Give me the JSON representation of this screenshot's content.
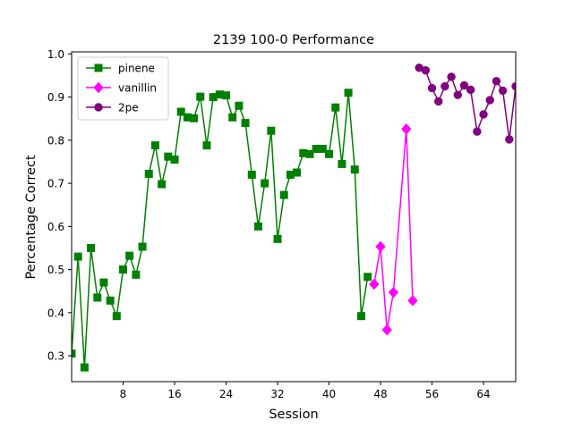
{
  "chart_data": {
    "type": "line",
    "title": "2139 100-0 Performance",
    "xlabel": "Session",
    "ylabel": "Percentage Correct",
    "xlim": [
      0,
      69
    ],
    "ylim": [
      0.24,
      1.005
    ],
    "xticks": [
      8,
      16,
      24,
      32,
      40,
      48,
      56,
      64
    ],
    "yticks": [
      0.3,
      0.4,
      0.5,
      0.6,
      0.7,
      0.8,
      0.9,
      1.0
    ],
    "xtick_labels": [
      "8",
      "16",
      "24",
      "32",
      "40",
      "48",
      "56",
      "64"
    ],
    "ytick_labels": [
      "0.3",
      "0.4",
      "0.5",
      "0.6",
      "0.7",
      "0.8",
      "0.9",
      "1.0"
    ],
    "legend_position": "top-left",
    "series": [
      {
        "name": "pinene",
        "color": "#008000",
        "marker": "square",
        "x": [
          0,
          1,
          2,
          3,
          4,
          5,
          6,
          7,
          8,
          9,
          10,
          11,
          12,
          13,
          14,
          15,
          16,
          17,
          18,
          19,
          20,
          21,
          22,
          23,
          24,
          25,
          26,
          27,
          28,
          29,
          30,
          31,
          32,
          33,
          34,
          35,
          36,
          37,
          38,
          39,
          40,
          41,
          42,
          43,
          44,
          45,
          46
        ],
        "y": [
          0.305,
          0.53,
          0.273,
          0.55,
          0.435,
          0.47,
          0.428,
          0.392,
          0.5,
          0.532,
          0.488,
          0.553,
          0.722,
          0.788,
          0.698,
          0.762,
          0.755,
          0.866,
          0.853,
          0.851,
          0.901,
          0.788,
          0.9,
          0.906,
          0.904,
          0.853,
          0.88,
          0.84,
          0.72,
          0.6,
          0.7,
          0.822,
          0.571,
          0.673,
          0.72,
          0.725,
          0.77,
          0.768,
          0.78,
          0.78,
          0.768,
          0.876,
          0.745,
          0.91,
          0.732,
          0.392,
          0.483
        ]
      },
      {
        "name": "vanillin",
        "color": "#ff00ff",
        "marker": "diamond",
        "x": [
          47,
          48,
          49,
          50,
          52,
          53
        ],
        "y": [
          0.466,
          0.553,
          0.36,
          0.447,
          0.826,
          0.428
        ]
      },
      {
        "name": "2pe",
        "color": "#800080",
        "marker": "circle",
        "x": [
          54,
          55,
          56,
          57,
          58,
          59,
          60,
          61,
          62,
          63,
          64,
          65,
          66,
          67,
          68,
          69
        ],
        "y": [
          0.968,
          0.962,
          0.921,
          0.89,
          0.925,
          0.947,
          0.905,
          0.927,
          0.917,
          0.82,
          0.86,
          0.893,
          0.937,
          0.915,
          0.802,
          0.925
        ]
      }
    ]
  }
}
